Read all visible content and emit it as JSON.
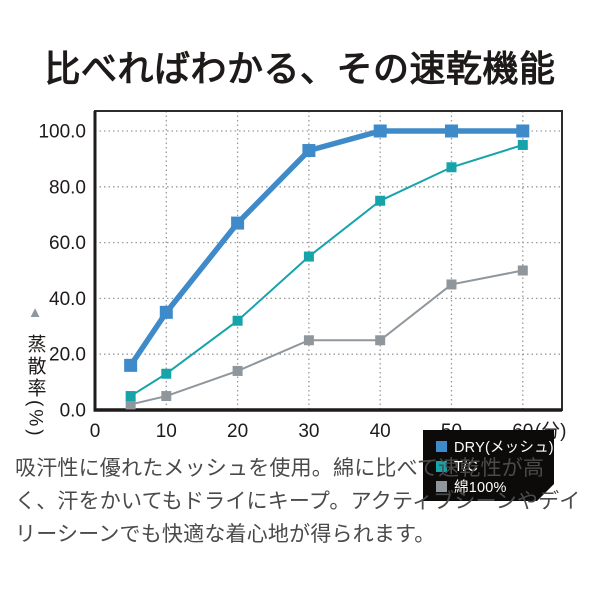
{
  "title": "比べればわかる、その速乾機能",
  "chart_data": {
    "type": "line",
    "title": "",
    "xlabel_unit": "(分)",
    "ylabel": "蒸散率(%)",
    "ylabel_marker": "▲",
    "x": [
      5,
      10,
      20,
      30,
      40,
      50,
      60
    ],
    "x_ticks": [
      0,
      10,
      20,
      30,
      40,
      50,
      60
    ],
    "y_ticks": [
      "0.0",
      "20.0",
      "40.0",
      "60.0",
      "80.0",
      "100.0"
    ],
    "xlim": [
      0,
      65.5
    ],
    "ylim": [
      0,
      100
    ],
    "grid": "dotted",
    "legend_position": "inside-bottom-right",
    "series": [
      {
        "name": "DRY(メッシュ)",
        "color": "#3f8ac9",
        "line_width": 5.5,
        "marker": "square",
        "marker_size": 13,
        "values": [
          16,
          35,
          67,
          93,
          100,
          100,
          100
        ]
      },
      {
        "name": "T/C",
        "color": "#16a3a9",
        "line_width": 2,
        "marker": "square",
        "marker_size": 10,
        "values": [
          5,
          13,
          32,
          55,
          75,
          87,
          95
        ]
      },
      {
        "name": "綿100%",
        "color": "#8f979d",
        "line_width": 2,
        "marker": "square",
        "marker_size": 10,
        "values": [
          2,
          5,
          14,
          25,
          25,
          45,
          50
        ]
      }
    ],
    "colors": {
      "grid": "#9a9a9a",
      "axis": "#1e1b1a",
      "border": "#2e2b2b",
      "tick_text": "#1e1b1a"
    }
  },
  "description": {
    "lines": [
      "吸汗性に優れたメッシュを使用。綿に比べて速乾性が高",
      "く、汗をかいてもドライにキープ。アクティブシーンやデイ",
      "リーシーンでも快適な着心地が得られます。"
    ]
  }
}
